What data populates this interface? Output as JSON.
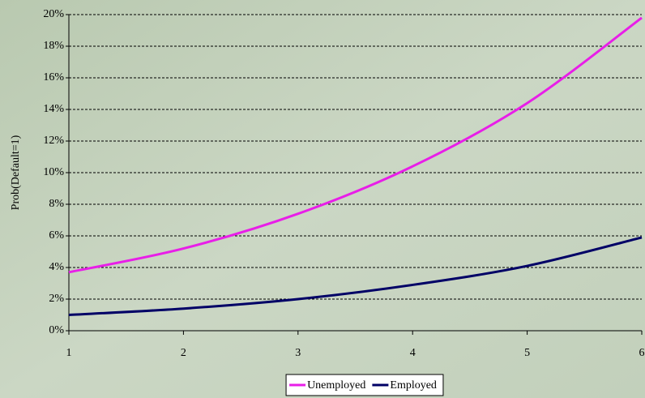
{
  "chart_data": {
    "type": "line",
    "y_label": "Prob(Default=1)",
    "x": [
      1,
      2,
      3,
      4,
      5,
      6
    ],
    "xlim": [
      1,
      6
    ],
    "xticks": [
      1,
      2,
      3,
      4,
      5,
      6
    ],
    "ylim": [
      0,
      20
    ],
    "yticks": [
      {
        "value": 0,
        "label": "0%"
      },
      {
        "value": 2,
        "label": "2%"
      },
      {
        "value": 4,
        "label": "4%"
      },
      {
        "value": 6,
        "label": "6%"
      },
      {
        "value": 8,
        "label": "8%"
      },
      {
        "value": 10,
        "label": "10%"
      },
      {
        "value": 12,
        "label": "12%"
      },
      {
        "value": 14,
        "label": "14%"
      },
      {
        "value": 16,
        "label": "16%"
      },
      {
        "value": 18,
        "label": "18%"
      },
      {
        "value": 20,
        "label": "20%"
      }
    ],
    "grid": true,
    "legend": "bottom",
    "series": [
      {
        "name": "Unemployed",
        "color": "#e81ee8",
        "values": [
          3.7,
          5.2,
          7.4,
          10.4,
          14.4,
          19.8
        ]
      },
      {
        "name": "Employed",
        "color": "#000066",
        "values": [
          1.0,
          1.4,
          2.0,
          2.9,
          4.1,
          5.9
        ]
      }
    ]
  }
}
